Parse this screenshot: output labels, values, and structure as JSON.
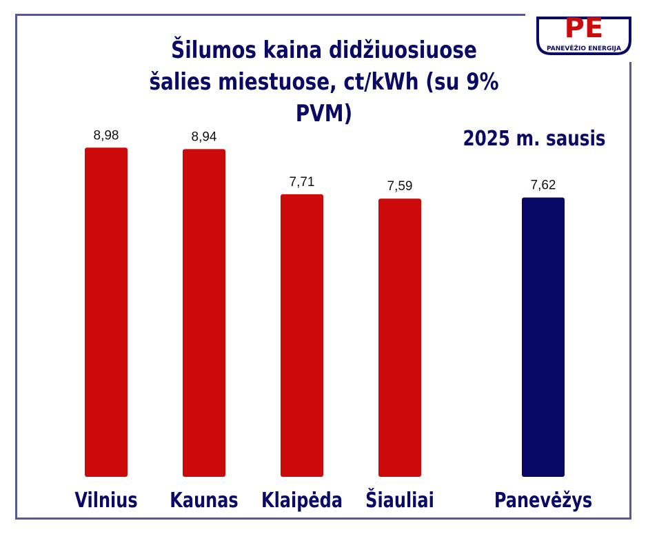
{
  "chart_data": {
    "type": "bar",
    "title": "Šilumos kaina didžiuosiuose šalies miestuose, ct/kWh (su 9% PVM)",
    "annotation": "2025 m. sausis",
    "categories": [
      "Vilnius",
      "Kaunas",
      "Klaipėda",
      "Šiauliai",
      "Panevėžys"
    ],
    "values": [
      8.98,
      8.94,
      7.71,
      7.59,
      7.62
    ],
    "value_labels": [
      "8,98",
      "8,94",
      "7,71",
      "7,59",
      "7,62"
    ],
    "bar_colors": [
      "#cc0a0a",
      "#cc0a0a",
      "#cc0a0a",
      "#cc0a0a",
      "#080866"
    ],
    "ylim": [
      0,
      10
    ],
    "grid": false,
    "legend": "none"
  },
  "logo": {
    "letters": "PE",
    "text": "PANEVĖŽIO ENERGIJA",
    "colors": {
      "red": "#cc0a0a",
      "navy": "#0a0a66"
    }
  }
}
